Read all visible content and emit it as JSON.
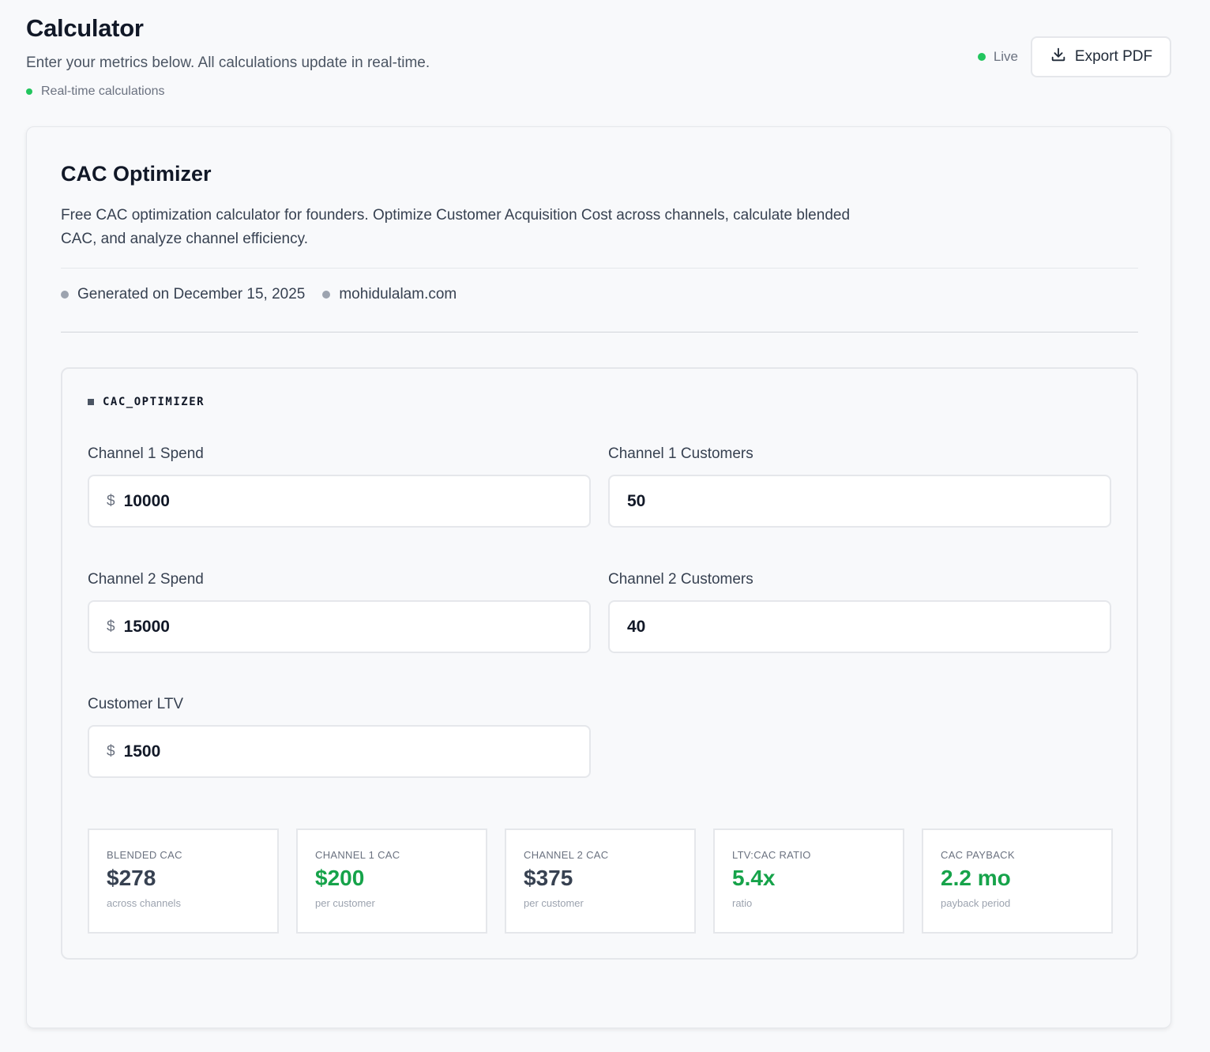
{
  "header": {
    "title": "Calculator",
    "subtitle": "Enter your metrics below. All calculations update in real-time.",
    "realtime_label": "Real-time calculations",
    "live_label": "Live",
    "export_label": "Export PDF"
  },
  "card": {
    "title": "CAC Optimizer",
    "description": "Free CAC optimization calculator for founders. Optimize Customer Acquisition Cost across channels, calculate blended CAC, and analyze channel efficiency.",
    "generated": "Generated on December 15, 2025",
    "site": "mohidulalam.com"
  },
  "panel": {
    "tag": "CAC_OPTIMIZER",
    "fields": {
      "ch1_spend": {
        "label": "Channel 1 Spend",
        "prefix": "$",
        "value": "10000"
      },
      "ch1_customers": {
        "label": "Channel 1 Customers",
        "value": "50"
      },
      "ch2_spend": {
        "label": "Channel 2 Spend",
        "prefix": "$",
        "value": "15000"
      },
      "ch2_customers": {
        "label": "Channel 2 Customers",
        "value": "40"
      },
      "ltv": {
        "label": "Customer LTV",
        "prefix": "$",
        "value": "1500"
      }
    }
  },
  "results": [
    {
      "label": "BLENDED CAC",
      "value": "$278",
      "sub": "across channels",
      "color": "#374151"
    },
    {
      "label": "CHANNEL 1 CAC",
      "value": "$200",
      "sub": "per customer",
      "color": "#16a34a"
    },
    {
      "label": "CHANNEL 2 CAC",
      "value": "$375",
      "sub": "per customer",
      "color": "#374151"
    },
    {
      "label": "LTV:CAC RATIO",
      "value": "5.4x",
      "sub": "ratio",
      "color": "#16a34a"
    },
    {
      "label": "CAC PAYBACK",
      "value": "2.2 mo",
      "sub": "payback period",
      "color": "#16a34a"
    }
  ],
  "colors": {
    "accent_green": "#22c55e",
    "good_value": "#16a34a"
  },
  "icons": {
    "export": "download-icon"
  }
}
